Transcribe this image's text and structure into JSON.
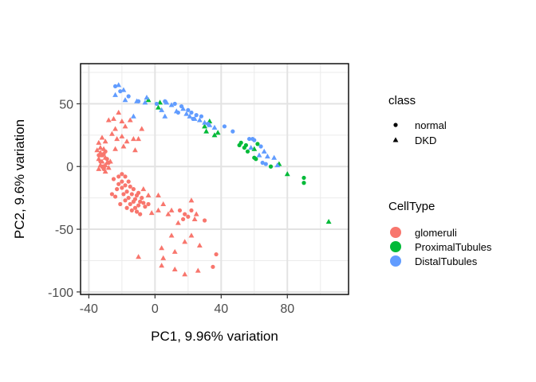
{
  "chart_data": {
    "type": "scatter",
    "xlabel": "PC1, 9.96% variation",
    "ylabel": "PC2, 9.6% variation",
    "xlim": [
      -45,
      117
    ],
    "ylim": [
      -102,
      82
    ],
    "x_ticks": [
      "-40",
      "0",
      "40",
      "80"
    ],
    "x_tick_values": [
      -40,
      0,
      40,
      80
    ],
    "y_ticks": [
      "50",
      "0",
      "-50",
      "-100"
    ],
    "y_tick_values": [
      50,
      0,
      -50,
      -100
    ],
    "grid": true,
    "legend_placement": "right",
    "legends": [
      {
        "title": "class",
        "entries": [
          {
            "label": "normal",
            "shape": "circle"
          },
          {
            "label": "DKD",
            "shape": "triangle"
          }
        ]
      },
      {
        "title": "CellType",
        "entries": [
          {
            "label": "glomeruli",
            "color": "#F8766D"
          },
          {
            "label": "ProximalTubules",
            "color": "#00BA38"
          },
          {
            "label": "DistalTubules",
            "color": "#619CFF"
          }
        ]
      }
    ],
    "series": [
      {
        "name": "glomeruli",
        "color": "#F8766D",
        "points": [
          [
            -22,
            43,
            "DKD"
          ],
          [
            -25,
            38,
            "DKD"
          ],
          [
            -20,
            36,
            "DKD"
          ],
          [
            -18,
            32,
            "DKD"
          ],
          [
            -24,
            30,
            "DKD"
          ],
          [
            -28,
            37,
            "DKD"
          ],
          [
            -15,
            37,
            "DKD"
          ],
          [
            -26,
            26,
            "DKD"
          ],
          [
            -23,
            22,
            "DKD"
          ],
          [
            -20,
            24,
            "DKD"
          ],
          [
            -19,
            16,
            "DKD"
          ],
          [
            -24,
            14,
            "DKD"
          ],
          [
            -17,
            20,
            "DKD"
          ],
          [
            -13,
            22,
            "DKD"
          ],
          [
            -10,
            22,
            "DKD"
          ],
          [
            -8,
            30,
            "DKD"
          ],
          [
            -12,
            13,
            "DKD"
          ],
          [
            -32,
            23,
            "DKD"
          ],
          [
            -34,
            19,
            "DKD"
          ],
          [
            -33,
            15,
            "DKD"
          ],
          [
            -35,
            13,
            "DKD"
          ],
          [
            -33,
            11,
            "DKD"
          ],
          [
            -32,
            9,
            "DKD"
          ],
          [
            -34,
            6,
            "DKD"
          ],
          [
            -32,
            4,
            "DKD"
          ],
          [
            -33,
            1,
            "DKD"
          ],
          [
            -31,
            0,
            "DKD"
          ],
          [
            -34,
            -2,
            "DKD"
          ],
          [
            -31,
            14,
            "DKD"
          ],
          [
            -30,
            7,
            "DKD"
          ],
          [
            -30,
            20,
            "DKD"
          ],
          [
            -29,
            3,
            "DKD"
          ],
          [
            -30,
            1,
            "DKD"
          ],
          [
            -28,
            -1,
            "DKD"
          ],
          [
            -27,
            4,
            "DKD"
          ],
          [
            -30,
            -4,
            "DKD"
          ],
          [
            -34,
            9,
            "normal"
          ],
          [
            -33,
            4,
            "normal"
          ],
          [
            -32,
            0,
            "normal"
          ],
          [
            -31,
            10,
            "normal"
          ],
          [
            -29,
            6,
            "normal"
          ],
          [
            -31,
            -2,
            "normal"
          ],
          [
            -28,
            3,
            "normal"
          ],
          [
            -30,
            12,
            "normal"
          ],
          [
            -20,
            -6,
            "normal"
          ],
          [
            -22,
            -8,
            "normal"
          ],
          [
            -18,
            -8,
            "normal"
          ],
          [
            -25,
            -10,
            "normal"
          ],
          [
            -20,
            -12,
            "normal"
          ],
          [
            -16,
            -12,
            "normal"
          ],
          [
            -22,
            -14,
            "normal"
          ],
          [
            -18,
            -15,
            "normal"
          ],
          [
            -15,
            -16,
            "normal"
          ],
          [
            -20,
            -17,
            "normal"
          ],
          [
            -23,
            -18,
            "normal"
          ],
          [
            -13,
            -18,
            "normal"
          ],
          [
            -17,
            -20,
            "normal"
          ],
          [
            -19,
            -22,
            "normal"
          ],
          [
            -14,
            -22,
            "normal"
          ],
          [
            -11,
            -23,
            "normal"
          ],
          [
            -16,
            -25,
            "normal"
          ],
          [
            -12,
            -26,
            "normal"
          ],
          [
            -18,
            -27,
            "normal"
          ],
          [
            -13,
            -28,
            "normal"
          ],
          [
            -9,
            -28,
            "normal"
          ],
          [
            -15,
            -30,
            "normal"
          ],
          [
            -10,
            -31,
            "normal"
          ],
          [
            -12,
            -33,
            "normal"
          ],
          [
            -7,
            -29,
            "normal"
          ],
          [
            -14,
            -35,
            "normal"
          ],
          [
            -8,
            -25,
            "normal"
          ],
          [
            -10,
            -21,
            "normal"
          ],
          [
            -6,
            -32,
            "normal"
          ],
          [
            -4,
            -30,
            "normal"
          ],
          [
            -24,
            -24,
            "normal"
          ],
          [
            -21,
            -30,
            "normal"
          ],
          [
            -17,
            -33,
            "normal"
          ],
          [
            -11,
            -36,
            "normal"
          ],
          [
            -9,
            -38,
            "normal"
          ],
          [
            -26,
            -22,
            "normal"
          ],
          [
            -7,
            -18,
            "DKD"
          ],
          [
            -4,
            -23,
            "DKD"
          ],
          [
            2,
            -23,
            "DKD"
          ],
          [
            5,
            -30,
            "DKD"
          ],
          [
            2,
            -35,
            "DKD"
          ],
          [
            10,
            -35,
            "DKD"
          ],
          [
            -2,
            -37,
            "DKD"
          ],
          [
            8,
            -38,
            "DKD"
          ],
          [
            22,
            -27,
            "DKD"
          ],
          [
            24,
            -42,
            "DKD"
          ],
          [
            14,
            -45,
            "DKD"
          ],
          [
            10,
            -55,
            "DKD"
          ],
          [
            18,
            -60,
            "DKD"
          ],
          [
            4,
            -65,
            "DKD"
          ],
          [
            12,
            -68,
            "DKD"
          ],
          [
            22,
            -55,
            "DKD"
          ],
          [
            27,
            -63,
            "DKD"
          ],
          [
            26,
            -83,
            "DKD"
          ],
          [
            5,
            -73,
            "DKD"
          ],
          [
            4,
            -79,
            "DKD"
          ],
          [
            12,
            -82,
            "DKD"
          ],
          [
            18,
            -86,
            "DKD"
          ],
          [
            -10,
            -72,
            "DKD"
          ],
          [
            25,
            -38,
            "DKD"
          ],
          [
            15,
            -35,
            "normal"
          ],
          [
            18,
            -38,
            "normal"
          ],
          [
            20,
            -40,
            "normal"
          ],
          [
            17,
            -42,
            "normal"
          ],
          [
            22,
            -35,
            "normal"
          ],
          [
            30,
            -43,
            "normal"
          ],
          [
            37,
            -70,
            "normal"
          ],
          [
            35,
            -80,
            "normal"
          ]
        ]
      },
      {
        "name": "ProximalTubules",
        "color": "#00BA38",
        "points": [
          [
            -4,
            53,
            "DKD"
          ],
          [
            3,
            51,
            "DKD"
          ],
          [
            2,
            47,
            "DKD"
          ],
          [
            30,
            32,
            "DKD"
          ],
          [
            31,
            28,
            "DKD"
          ],
          [
            36,
            25,
            "DKD"
          ],
          [
            38,
            27,
            "DKD"
          ],
          [
            33,
            36,
            "DKD"
          ],
          [
            52,
            19,
            "normal"
          ],
          [
            51,
            17,
            "normal"
          ],
          [
            54,
            15,
            "normal"
          ],
          [
            55,
            17,
            "normal"
          ],
          [
            56,
            12,
            "normal"
          ],
          [
            60,
            7,
            "normal"
          ],
          [
            61,
            6,
            "normal"
          ],
          [
            62,
            18,
            "normal"
          ],
          [
            70,
            0,
            "normal"
          ],
          [
            90,
            -9,
            "normal"
          ],
          [
            90,
            -13,
            "normal"
          ],
          [
            60,
            14,
            "DKD"
          ],
          [
            75,
            2,
            "DKD"
          ],
          [
            80,
            -6,
            "DKD"
          ],
          [
            105,
            -44,
            "DKD"
          ]
        ]
      },
      {
        "name": "DistalTubules",
        "color": "#619CFF",
        "points": [
          [
            -22,
            65,
            "DKD"
          ],
          [
            -19,
            61,
            "DKD"
          ],
          [
            -24,
            57,
            "DKD"
          ],
          [
            -18,
            53,
            "DKD"
          ],
          [
            -11,
            52,
            "DKD"
          ],
          [
            -6,
            51,
            "DKD"
          ],
          [
            -5,
            55,
            "DKD"
          ],
          [
            7,
            51,
            "DKD"
          ],
          [
            10,
            49,
            "DKD"
          ],
          [
            13,
            44,
            "DKD"
          ],
          [
            17,
            46,
            "DKD"
          ],
          [
            19,
            42,
            "DKD"
          ],
          [
            21,
            40,
            "DKD"
          ],
          [
            24,
            38,
            "DKD"
          ],
          [
            27,
            37,
            "DKD"
          ],
          [
            30,
            35,
            "DKD"
          ],
          [
            33,
            33,
            "DKD"
          ],
          [
            36,
            31,
            "DKD"
          ],
          [
            4,
            45,
            "DKD"
          ],
          [
            6,
            40,
            "DKD"
          ],
          [
            -13,
            40,
            "DKD"
          ],
          [
            58,
            15,
            "DKD"
          ],
          [
            66,
            12,
            "DKD"
          ],
          [
            63,
            9,
            "DKD"
          ],
          [
            68,
            8,
            "DKD"
          ],
          [
            72,
            7,
            "DKD"
          ],
          [
            74,
            1,
            "DKD"
          ],
          [
            -24,
            64,
            "normal"
          ],
          [
            -21,
            60,
            "normal"
          ],
          [
            -16,
            56,
            "normal"
          ],
          [
            -10,
            52,
            "normal"
          ],
          [
            1,
            50,
            "normal"
          ],
          [
            6,
            52,
            "normal"
          ],
          [
            12,
            50,
            "normal"
          ],
          [
            16,
            48,
            "normal"
          ],
          [
            14,
            43,
            "normal"
          ],
          [
            20,
            45,
            "normal"
          ],
          [
            22,
            43,
            "normal"
          ],
          [
            25,
            41,
            "normal"
          ],
          [
            28,
            40,
            "normal"
          ],
          [
            23,
            38,
            "normal"
          ],
          [
            32,
            34,
            "normal"
          ],
          [
            42,
            32,
            "normal"
          ],
          [
            47,
            28,
            "normal"
          ],
          [
            57,
            22,
            "normal"
          ],
          [
            60,
            21,
            "normal"
          ],
          [
            59,
            22,
            "normal"
          ],
          [
            64,
            16,
            "normal"
          ],
          [
            65,
            3,
            "normal"
          ],
          [
            67,
            2,
            "normal"
          ]
        ]
      }
    ]
  }
}
